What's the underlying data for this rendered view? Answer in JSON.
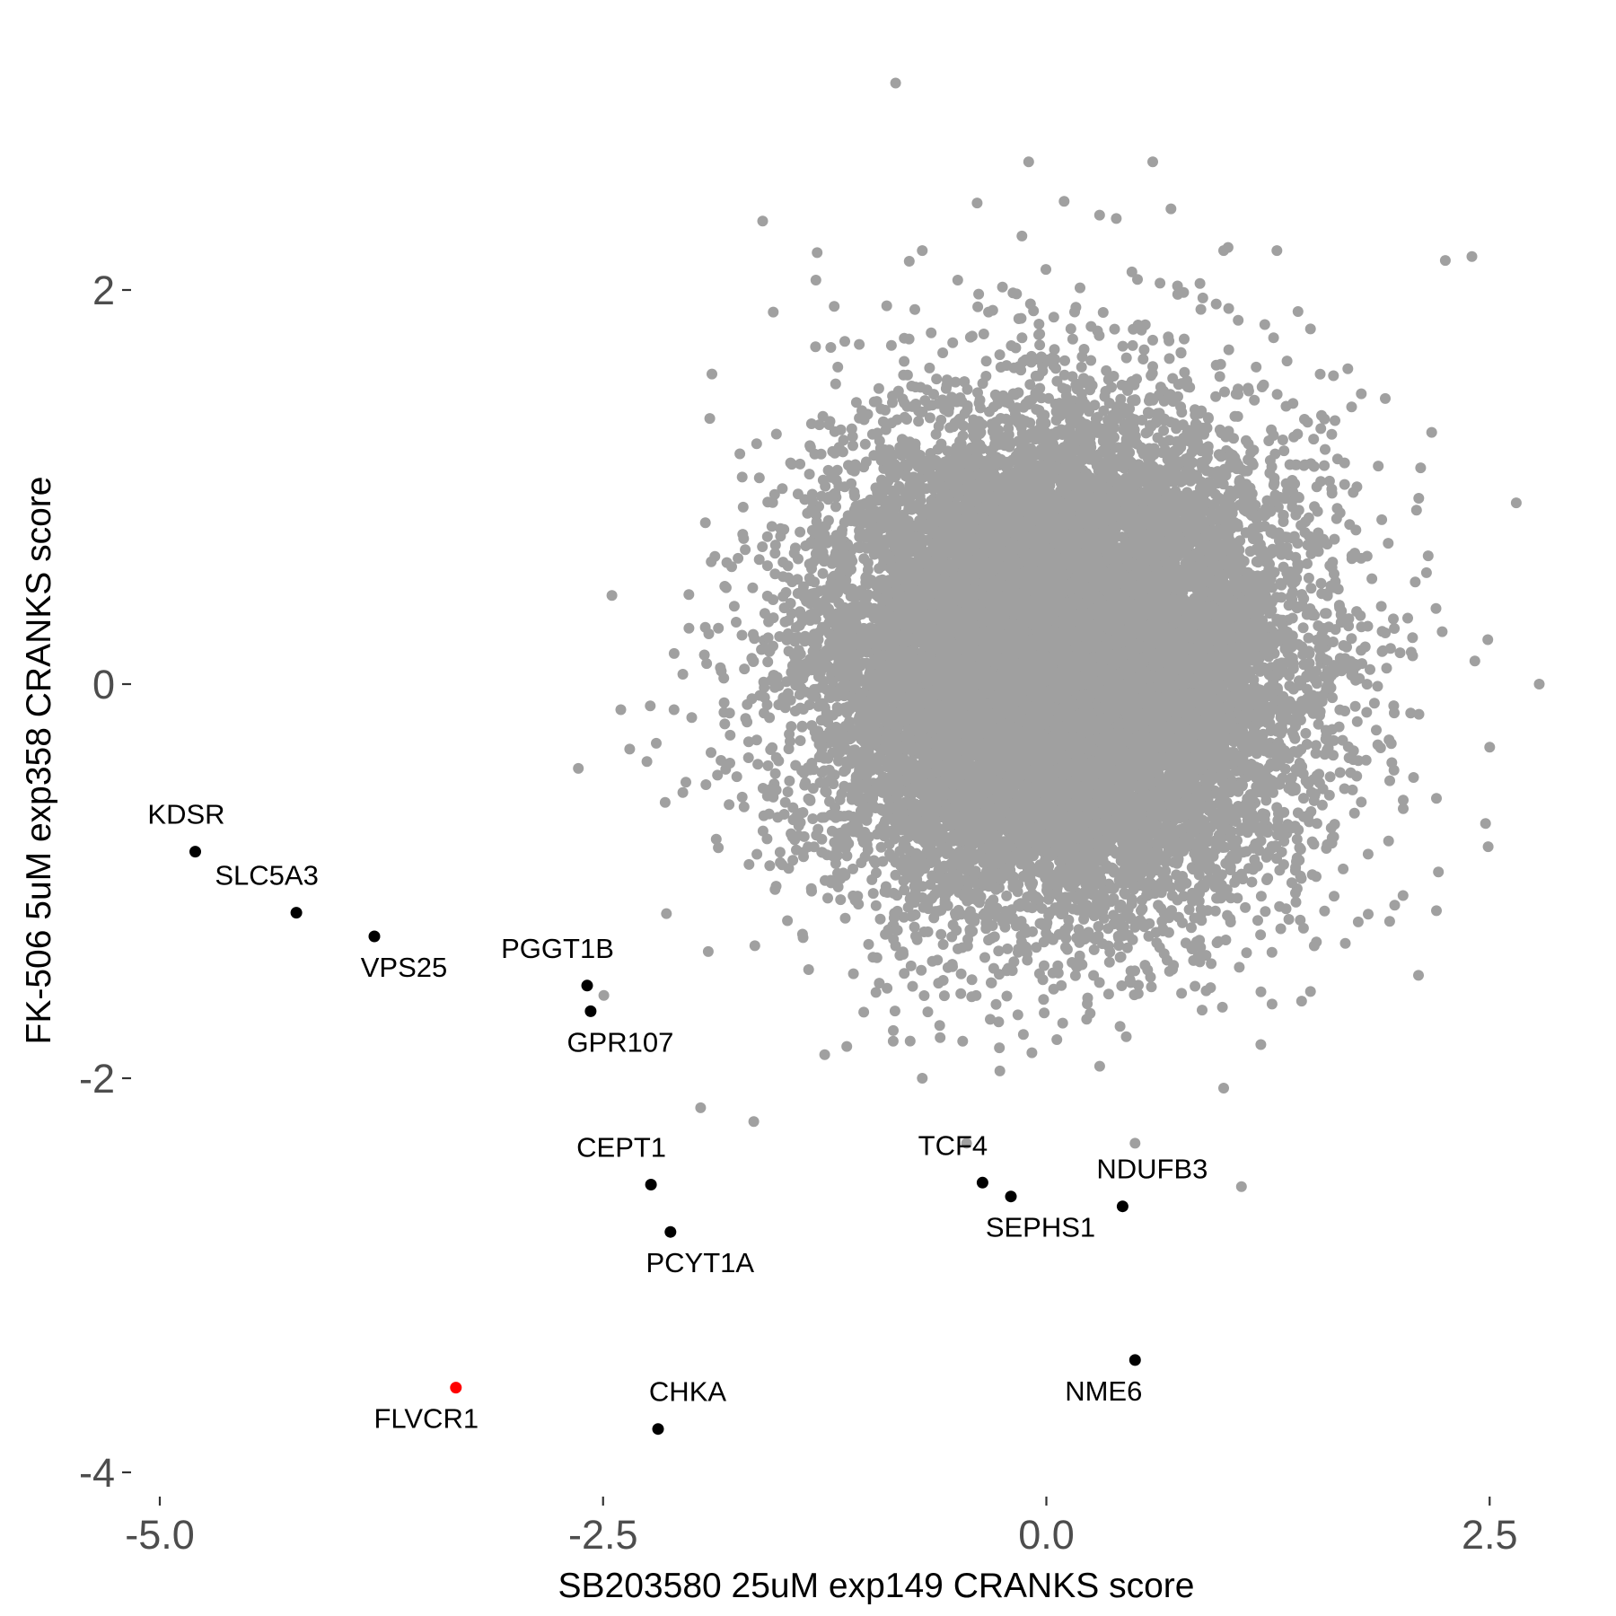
{
  "chart_data": {
    "type": "scatter",
    "title": "",
    "xlabel": "SB203580 25uM exp149 CRANKS score",
    "ylabel": "FK-506 5uM exp358 CRANKS score",
    "xlim": [
      -5.0,
      2.6
    ],
    "ylim": [
      -4.0,
      3.0
    ],
    "x_ticks": [
      -5.0,
      -2.5,
      0.0,
      2.5
    ],
    "x_tick_labels": [
      "-5.0",
      "-2.5",
      "0.0",
      "2.5"
    ],
    "y_ticks": [
      -4,
      -2,
      0,
      2
    ],
    "y_tick_labels": [
      "-4",
      "-2",
      "0",
      "2"
    ],
    "grid": false,
    "legend": "none",
    "colors": {
      "background": "#ffffff",
      "cloud": "#a0a0a0",
      "highlight": "#000000",
      "target": "#ff0000"
    },
    "background_cloud": {
      "description_count": 18000,
      "x_center": 0.05,
      "y_center": 0.1,
      "x_sd": 0.65,
      "y_sd": 0.6,
      "outliers": [
        [
          -0.85,
          3.05
        ],
        [
          -0.1,
          2.65
        ],
        [
          0.6,
          2.65
        ],
        [
          0.1,
          2.45
        ],
        [
          -1.6,
          2.35
        ],
        [
          0.3,
          2.38
        ],
        [
          -0.7,
          2.2
        ],
        [
          1.0,
          2.2
        ],
        [
          1.3,
          2.2
        ],
        [
          2.25,
          2.15
        ],
        [
          2.4,
          2.17
        ],
        [
          -1.3,
          2.05
        ],
        [
          -0.5,
          2.05
        ],
        [
          -0.9,
          1.92
        ],
        [
          1.7,
          1.6
        ],
        [
          2.65,
          0.92
        ],
        [
          2.78,
          0.0
        ],
        [
          2.5,
          -0.32
        ],
        [
          -2.45,
          0.45
        ],
        [
          -2.4,
          -0.13
        ],
        [
          -2.1,
          -0.13
        ],
        [
          -2.2,
          -0.3
        ],
        [
          -2.35,
          -0.33
        ],
        [
          -2.0,
          -0.17
        ],
        [
          -2.05,
          0.05
        ],
        [
          -2.15,
          -0.6
        ],
        [
          -2.05,
          -0.55
        ],
        [
          -1.95,
          -2.15
        ],
        [
          -1.65,
          -2.22
        ],
        [
          -1.85,
          -0.83
        ],
        [
          1.1,
          -2.55
        ],
        [
          0.5,
          -2.33
        ],
        [
          -0.45,
          -2.33
        ],
        [
          2.2,
          -1.15
        ],
        [
          2.2,
          -0.58
        ],
        [
          -0.7,
          -2.0
        ],
        [
          -1.25,
          -1.88
        ],
        [
          1.0,
          -2.05
        ]
      ]
    },
    "labeled_points": [
      {
        "gene": "KDSR",
        "x": -4.8,
        "y": -0.85,
        "color": "highlight"
      },
      {
        "gene": "SLC5A3",
        "x": -4.23,
        "y": -1.16,
        "color": "highlight"
      },
      {
        "gene": "VPS25",
        "x": -3.79,
        "y": -1.28,
        "color": "highlight"
      },
      {
        "gene": "PGGT1B",
        "x": -2.59,
        "y": -1.53,
        "color": "highlight"
      },
      {
        "gene": "GPR107",
        "x": -2.57,
        "y": -1.66,
        "color": "highlight"
      },
      {
        "gene": "CEPT1",
        "x": -2.23,
        "y": -2.54,
        "color": "highlight"
      },
      {
        "gene": "PCYT1A",
        "x": -2.12,
        "y": -2.78,
        "color": "highlight"
      },
      {
        "gene": "CHKA",
        "x": -2.19,
        "y": -3.78,
        "color": "highlight"
      },
      {
        "gene": "FLVCR1",
        "x": -3.33,
        "y": -3.57,
        "color": "target"
      },
      {
        "gene": "TCF4",
        "x": -0.36,
        "y": -2.53,
        "color": "highlight"
      },
      {
        "gene": "SEPHS1",
        "x": -0.2,
        "y": -2.6,
        "color": "highlight"
      },
      {
        "gene": "NDUFB3",
        "x": 0.43,
        "y": -2.65,
        "color": "highlight"
      },
      {
        "gene": "NME6",
        "x": 0.5,
        "y": -3.43,
        "color": "highlight"
      }
    ]
  }
}
